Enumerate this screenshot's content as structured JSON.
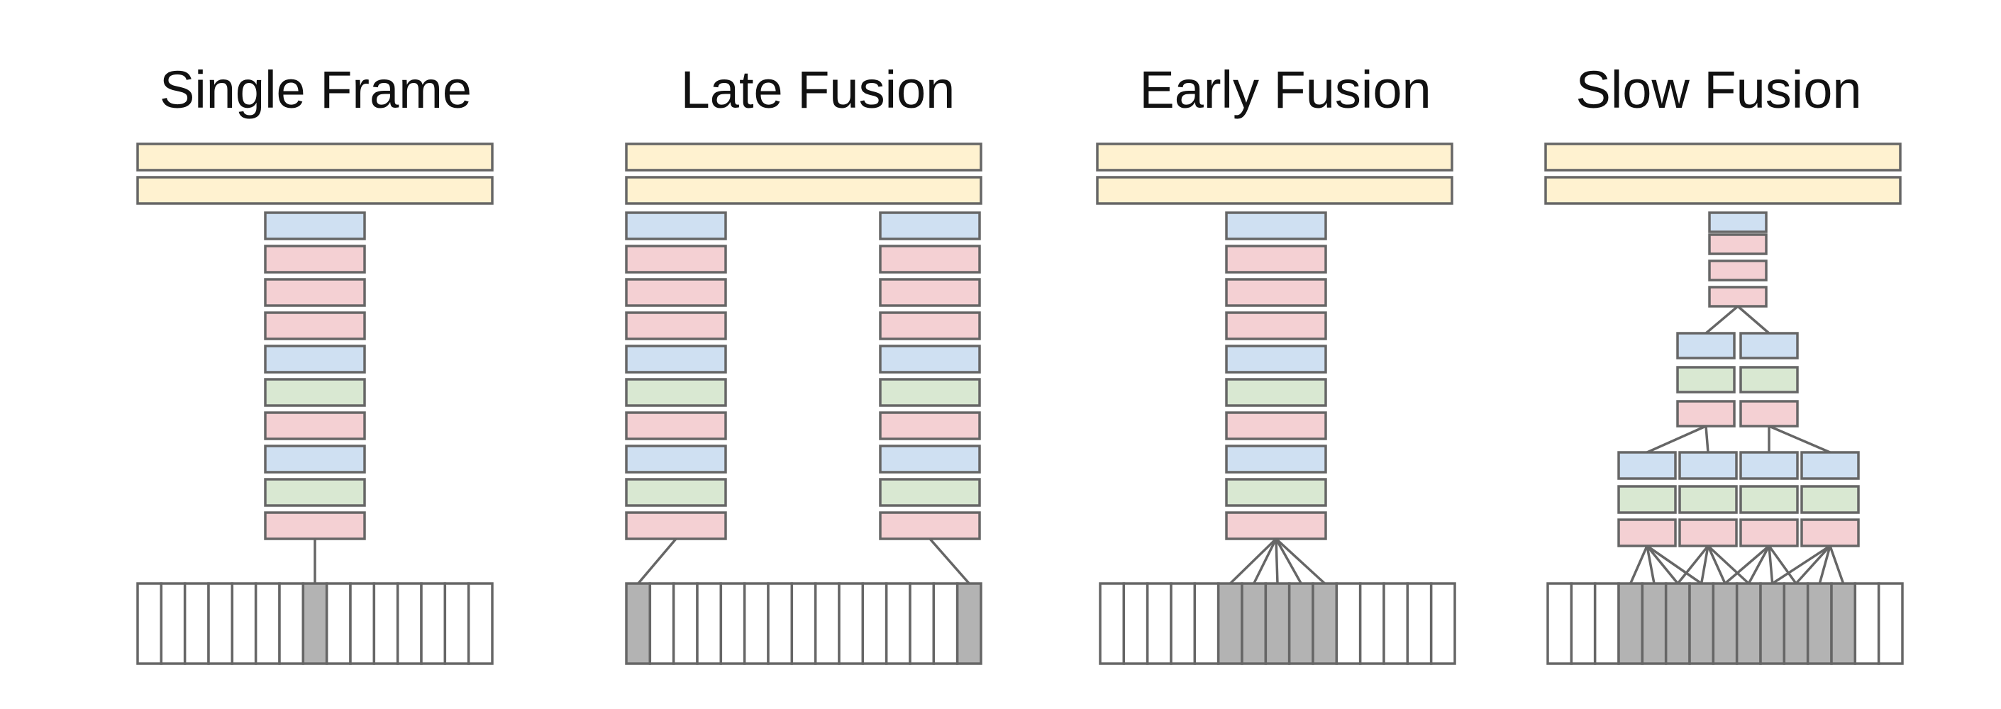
{
  "panels": [
    {
      "title": "Single Frame"
    },
    {
      "title": "Late Fusion"
    },
    {
      "title": "Early Fusion"
    },
    {
      "title": "Slow Fusion"
    }
  ],
  "colors": {
    "fc_layer": "#fff2d0",
    "blue_layer": "#cfe0f2",
    "red_layer": "#f4d0d3",
    "green_layer": "#d9e8d2",
    "frame_active": "#b3b3b3",
    "frame_inactive": "#ffffff",
    "stroke": "#666666"
  }
}
